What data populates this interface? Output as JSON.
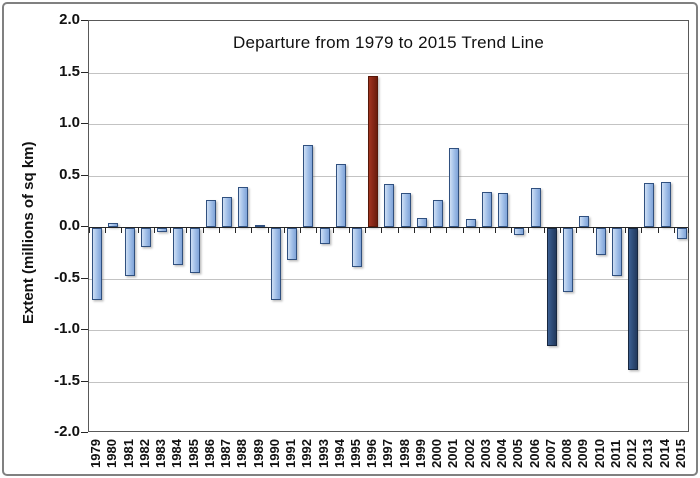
{
  "chart_data": {
    "type": "bar",
    "title": "Departure from 1979 to 2015 Trend Line",
    "xlabel": "",
    "ylabel": "Extent (millions of sq km)",
    "ylim": [
      -2.0,
      2.0
    ],
    "ytick_step": 0.5,
    "ytick_labels": [
      "2.0",
      "1.5",
      "1.0",
      "0.5",
      "0.0",
      "-0.5",
      "-1.0",
      "-1.5",
      "-2.0"
    ],
    "grid": true,
    "legend": "none",
    "categories": [
      1979,
      1980,
      1981,
      1982,
      1983,
      1984,
      1985,
      1986,
      1987,
      1988,
      1989,
      1990,
      1991,
      1992,
      1993,
      1994,
      1995,
      1996,
      1997,
      1998,
      1999,
      2000,
      2001,
      2002,
      2003,
      2004,
      2005,
      2006,
      2007,
      2008,
      2009,
      2010,
      2011,
      2012,
      2013,
      2014,
      2015
    ],
    "values": [
      -0.7,
      0.04,
      -0.47,
      -0.18,
      -0.04,
      -0.36,
      -0.44,
      0.26,
      0.29,
      0.39,
      0.02,
      -0.7,
      -0.31,
      0.8,
      -0.16,
      0.61,
      -0.38,
      1.47,
      0.42,
      0.33,
      0.09,
      0.26,
      0.77,
      0.08,
      0.34,
      0.33,
      -0.07,
      0.38,
      -1.15,
      -0.62,
      0.11,
      -0.26,
      -0.47,
      -1.38,
      0.43,
      0.44,
      -0.11
    ],
    "highlight_red_years": [
      1996
    ],
    "highlight_navy_years": [
      2007,
      2012
    ],
    "colors": {
      "bar_default_light": "#cfdff4",
      "bar_default_mid": "#a6c3ea",
      "bar_default_dark": "#7fa3d8",
      "bar_default_border": "#30507f",
      "bar_red": "#8a2817",
      "bar_red_border": "#571708",
      "bar_navy": "#2f4d79",
      "bar_navy_border": "#17273f",
      "gridline": "#c3c3c3",
      "axis": "#262626",
      "frame_border": "#808080"
    }
  }
}
